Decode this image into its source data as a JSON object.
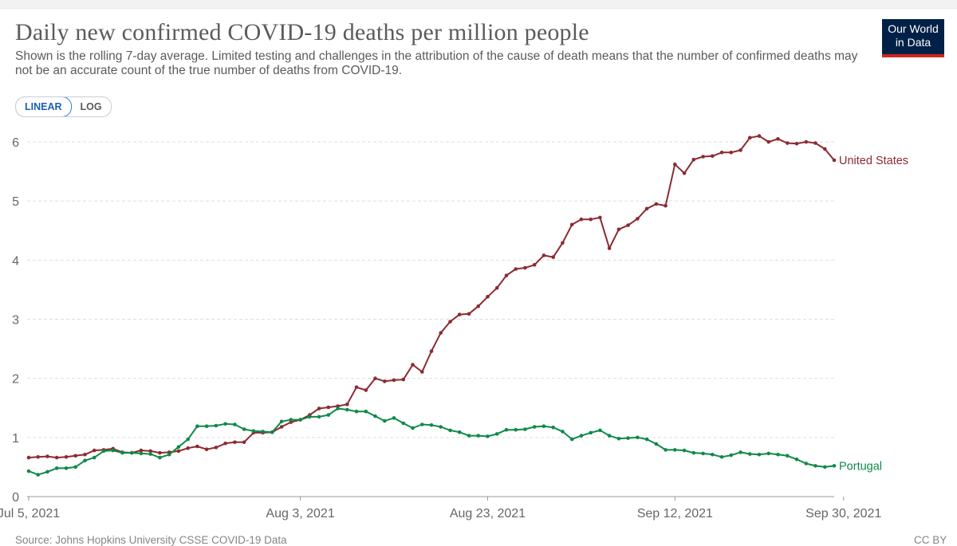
{
  "header": {
    "title": "Daily new confirmed COVID-19 deaths per million people",
    "subtitle": "Shown is the rolling 7-day average. Limited testing and challenges in the attribution of the cause of death means that the number of confirmed deaths may not be an accurate count of the true number of deaths from COVID-19."
  },
  "logo": {
    "line1": "Our World",
    "line2": "in Data"
  },
  "scale_toggle": {
    "linear_label": "LINEAR",
    "log_label": "LOG",
    "selected": "LINEAR"
  },
  "footer": {
    "source": "Source: Johns Hopkins University CSSE COVID-19 Data",
    "license": "CC BY"
  },
  "colors": {
    "united_states": "#8c2a32",
    "portugal": "#0e8a4a",
    "grid": "#dddddd"
  },
  "chart_data": {
    "type": "line",
    "title": "Daily new confirmed COVID-19 deaths per million people",
    "xlabel": "",
    "ylabel": "",
    "ylim": [
      0,
      6
    ],
    "yticks": [
      0,
      1,
      2,
      3,
      4,
      5,
      6
    ],
    "x_start": "2021-07-05",
    "x_end": "2021-10-03",
    "xticks": [
      {
        "label": "Jul 5, 2021",
        "index": 0
      },
      {
        "label": "Aug 3, 2021",
        "index": 29
      },
      {
        "label": "Aug 23, 2021",
        "index": 49
      },
      {
        "label": "Sep 12, 2021",
        "index": 69
      },
      {
        "label": "Sep 30, 2021",
        "index": 87
      }
    ],
    "grid": "horizontal dashed",
    "series": [
      {
        "name": "United States",
        "values": [
          0.66,
          0.67,
          0.68,
          0.66,
          0.67,
          0.69,
          0.71,
          0.78,
          0.79,
          0.81,
          0.75,
          0.74,
          0.78,
          0.77,
          0.74,
          0.75,
          0.77,
          0.82,
          0.85,
          0.8,
          0.83,
          0.9,
          0.92,
          0.92,
          1.08,
          1.08,
          1.09,
          1.18,
          1.26,
          1.3,
          1.38,
          1.49,
          1.51,
          1.53,
          1.56,
          1.85,
          1.8,
          2.0,
          1.95,
          1.97,
          1.98,
          2.23,
          2.11,
          2.46,
          2.77,
          2.96,
          3.08,
          3.09,
          3.22,
          3.38,
          3.53,
          3.74,
          3.85,
          3.87,
          3.92,
          4.08,
          4.05,
          4.29,
          4.6,
          4.69,
          4.69,
          4.72,
          4.2,
          4.52,
          4.59,
          4.7,
          4.87,
          4.95,
          4.92,
          5.62,
          5.47,
          5.7,
          5.75,
          5.76,
          5.82,
          5.82,
          5.86,
          6.07,
          6.1,
          6.0,
          6.05,
          5.98,
          5.97,
          6.0,
          5.98,
          5.88,
          5.69
        ]
      },
      {
        "name": "Portugal",
        "values": [
          0.43,
          0.37,
          0.42,
          0.48,
          0.48,
          0.5,
          0.61,
          0.66,
          0.77,
          0.78,
          0.74,
          0.74,
          0.73,
          0.72,
          0.66,
          0.71,
          0.84,
          0.97,
          1.19,
          1.19,
          1.2,
          1.23,
          1.22,
          1.14,
          1.11,
          1.1,
          1.09,
          1.27,
          1.3,
          1.3,
          1.35,
          1.35,
          1.38,
          1.49,
          1.47,
          1.44,
          1.44,
          1.36,
          1.28,
          1.33,
          1.24,
          1.16,
          1.22,
          1.21,
          1.18,
          1.12,
          1.09,
          1.03,
          1.03,
          1.02,
          1.06,
          1.13,
          1.13,
          1.14,
          1.18,
          1.19,
          1.17,
          1.1,
          0.97,
          1.03,
          1.08,
          1.12,
          1.03,
          0.98,
          0.99,
          1.0,
          0.97,
          0.89,
          0.79,
          0.79,
          0.78,
          0.74,
          0.73,
          0.71,
          0.67,
          0.7,
          0.75,
          0.72,
          0.71,
          0.73,
          0.71,
          0.69,
          0.63,
          0.56,
          0.52,
          0.5,
          0.52
        ]
      }
    ]
  }
}
